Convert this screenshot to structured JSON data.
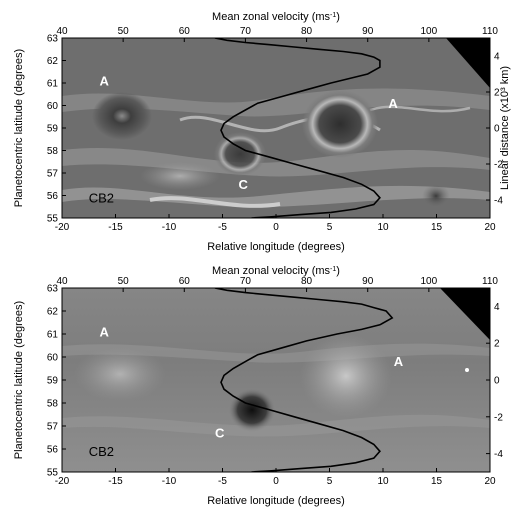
{
  "chart_data": [
    {
      "type": "line",
      "panel": "top",
      "xlabel": "Relative longitude (degrees)",
      "ylabel": "Planetocentric latitude (degrees)",
      "x2label": "Mean zonal velocity (ms",
      "x2label_sup": "-1",
      "y2label": "Linear distance (x10³ km)",
      "xlim": [
        -20,
        20
      ],
      "ylim": [
        55,
        63
      ],
      "x2lim": [
        40,
        110
      ],
      "y2lim": [
        -5,
        5
      ],
      "xticks": [
        -20,
        -15,
        -10,
        -5,
        0,
        5,
        10,
        15,
        20
      ],
      "yticks": [
        55,
        56,
        57,
        58,
        59,
        60,
        61,
        62,
        63
      ],
      "x2ticks": [
        40,
        50,
        60,
        70,
        80,
        90,
        100,
        110
      ],
      "y2ticks": [
        -4,
        -2,
        0,
        2,
        4
      ],
      "grid": false,
      "background": "grayscale image",
      "annotations": [
        {
          "text": "A",
          "x": -16.5,
          "y": 60.9
        },
        {
          "text": "A",
          "x": 10.5,
          "y": 59.9
        },
        {
          "text": "C",
          "x": -3.5,
          "y": 56.3
        },
        {
          "text": "CB2",
          "x": -17.5,
          "y": 55.7
        }
      ],
      "series": [
        {
          "x": [
            65,
            67,
            70,
            74,
            78,
            82,
            86,
            89,
            91,
            92,
            92,
            90,
            87,
            84,
            80,
            76,
            72,
            70,
            68,
            66.5,
            66,
            66.5,
            68,
            70,
            74,
            78,
            82,
            86,
            89,
            91,
            92,
            91,
            88,
            84,
            79,
            74,
            71
          ],
          "y": [
            63,
            62.9,
            62.8,
            62.7,
            62.6,
            62.5,
            62.4,
            62.3,
            62.15,
            62.0,
            61.7,
            61.4,
            61.2,
            61.0,
            60.7,
            60.4,
            60.1,
            59.8,
            59.5,
            59.2,
            58.9,
            58.6,
            58.3,
            58.0,
            57.7,
            57.4,
            57.1,
            56.8,
            56.5,
            56.2,
            55.9,
            55.6,
            55.4,
            55.25,
            55.15,
            55.05,
            55.0
          ]
        }
      ]
    },
    {
      "type": "line",
      "panel": "bottom",
      "xlabel": "Relative longitude (degrees)",
      "ylabel": "Planetocentric latitude (degrees)",
      "x2label": "Mean zonal velocity (ms",
      "x2label_sup": "-1",
      "xlim": [
        -20,
        20
      ],
      "ylim": [
        55,
        63
      ],
      "x2lim": [
        40,
        110
      ],
      "y2lim": [
        -5,
        5
      ],
      "xticks": [
        -20,
        -15,
        -10,
        -5,
        0,
        5,
        10,
        15,
        20
      ],
      "yticks": [
        55,
        56,
        57,
        58,
        59,
        60,
        61,
        62,
        63
      ],
      "x2ticks": [
        40,
        50,
        60,
        70,
        80,
        90,
        100,
        110
      ],
      "y2ticks": [
        -4,
        -2,
        0,
        2,
        4
      ],
      "grid": false,
      "background": "grayscale model image",
      "annotations": [
        {
          "text": "A",
          "x": -16.5,
          "y": 60.9
        },
        {
          "text": "A",
          "x": 11.0,
          "y": 59.6
        },
        {
          "text": "C",
          "x": -5.7,
          "y": 56.5
        },
        {
          "text": "CB2",
          "x": -17.5,
          "y": 55.7
        }
      ],
      "series": [
        {
          "x": [
            65,
            67,
            70,
            74,
            78,
            82,
            86,
            89,
            91,
            93,
            94,
            92,
            89,
            85,
            80,
            76,
            72,
            70,
            68,
            66.5,
            66,
            66.5,
            68,
            70,
            74,
            78,
            82,
            86,
            89,
            91,
            92,
            91,
            88,
            84,
            79,
            74,
            71
          ],
          "y": [
            63,
            62.9,
            62.8,
            62.7,
            62.6,
            62.5,
            62.4,
            62.3,
            62.15,
            62.0,
            61.7,
            61.4,
            61.2,
            61.0,
            60.7,
            60.4,
            60.1,
            59.8,
            59.5,
            59.2,
            58.9,
            58.6,
            58.3,
            58.0,
            57.7,
            57.4,
            57.1,
            56.8,
            56.5,
            56.2,
            55.9,
            55.6,
            55.4,
            55.25,
            55.15,
            55.05,
            55.0
          ]
        }
      ]
    }
  ]
}
